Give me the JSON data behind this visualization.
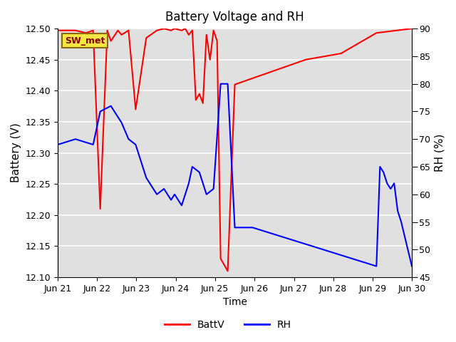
{
  "title": "Battery Voltage and RH",
  "xlabel": "Time",
  "ylabel_left": "Battery (V)",
  "ylabel_right": "RH (%)",
  "ylim_left": [
    12.1,
    12.5
  ],
  "ylim_right": [
    45,
    90
  ],
  "yticks_left": [
    12.1,
    12.15,
    12.2,
    12.25,
    12.3,
    12.35,
    12.4,
    12.45,
    12.5
  ],
  "yticks_right": [
    45,
    50,
    55,
    60,
    65,
    70,
    75,
    80,
    85,
    90
  ],
  "background_color": "#e0e0e0",
  "annotation_text": "SW_met",
  "battv_color": "red",
  "rh_color": "blue",
  "battv_x_days": [
    0.0,
    0.05,
    0.08,
    0.1,
    0.12,
    0.14,
    0.15,
    0.17,
    0.18,
    0.2,
    0.22,
    0.25,
    0.28,
    0.3,
    0.32,
    0.33,
    0.35,
    0.36,
    0.37,
    0.38,
    0.39,
    0.4,
    0.41,
    0.42,
    0.43,
    0.44,
    0.45,
    0.46,
    0.48,
    0.5,
    0.55,
    0.6,
    0.65,
    0.7,
    0.8,
    0.9,
    1.0
  ],
  "battv_y": [
    12.497,
    12.497,
    12.493,
    12.497,
    12.21,
    12.497,
    12.48,
    12.497,
    12.49,
    12.497,
    12.37,
    12.485,
    12.497,
    12.5,
    12.497,
    12.5,
    12.497,
    12.5,
    12.49,
    12.497,
    12.385,
    12.395,
    12.38,
    12.49,
    12.45,
    12.497,
    12.48,
    12.13,
    12.11,
    12.41,
    12.42,
    12.43,
    12.44,
    12.45,
    12.46,
    12.493,
    12.5
  ],
  "rh_x_days": [
    0.0,
    0.05,
    0.1,
    0.12,
    0.15,
    0.18,
    0.2,
    0.22,
    0.25,
    0.28,
    0.3,
    0.32,
    0.33,
    0.35,
    0.37,
    0.38,
    0.4,
    0.42,
    0.44,
    0.46,
    0.48,
    0.5,
    0.55,
    0.9,
    0.91,
    0.92,
    0.93,
    0.94,
    0.95,
    0.96,
    0.97,
    1.0
  ],
  "rh_y": [
    69,
    70,
    69,
    75,
    76,
    73,
    70,
    69,
    63,
    60,
    61,
    59,
    60,
    58,
    62,
    65,
    64,
    60,
    61,
    80,
    80,
    54,
    54,
    47,
    65,
    64,
    62,
    61,
    62,
    57,
    55,
    47
  ],
  "xticklabels": [
    "Jun 21",
    "Jun 22",
    "Jun 23",
    "Jun 24",
    "Jun 25",
    "Jun 26",
    "Jun 27",
    "Jun 28",
    "Jun 29",
    "Jun 30"
  ],
  "xtick_positions_days": [
    0.0,
    0.111,
    0.222,
    0.333,
    0.444,
    0.556,
    0.667,
    0.778,
    0.889,
    1.0
  ],
  "legend_labels": [
    "BattV",
    "RH"
  ]
}
